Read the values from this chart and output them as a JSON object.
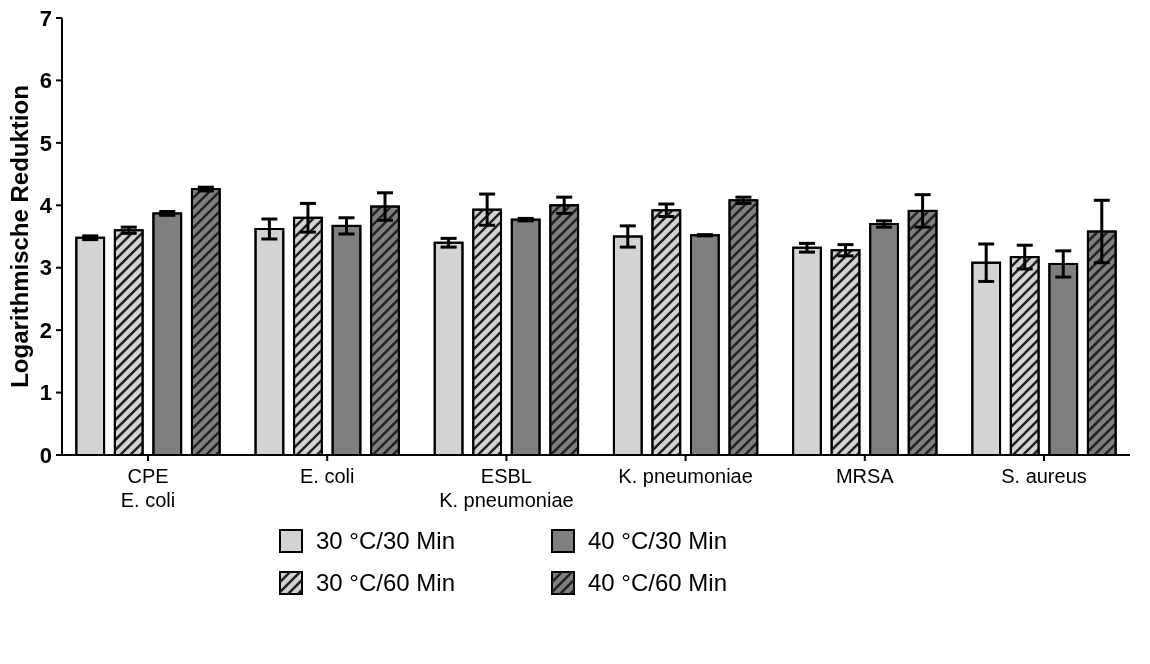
{
  "chart_data": {
    "type": "bar",
    "ylabel": "Logarithmische Reduktion",
    "categories": [
      "CPE\nE. coli",
      "E. coli",
      "ESBL\nK. pneumoniae",
      "K. pneumoniae",
      "MRSA",
      "S. aureus"
    ],
    "series": [
      {
        "name": "30 °C/30 Min",
        "color": "#d3d3d3",
        "values": [
          3.48,
          3.62,
          3.4,
          3.5,
          3.32,
          3.08
        ],
        "errors": [
          0.03,
          0.16,
          0.07,
          0.17,
          0.07,
          0.3
        ]
      },
      {
        "name": "30 °C/60 Min",
        "color": "#d3d3d3",
        "values": [
          3.6,
          3.8,
          3.93,
          3.92,
          3.28,
          3.17
        ],
        "errors": [
          0.05,
          0.23,
          0.25,
          0.1,
          0.09,
          0.19
        ]
      },
      {
        "name": "40 °C/30 Min",
        "color": "#7f7f7f",
        "values": [
          3.87,
          3.67,
          3.77,
          3.52,
          3.7,
          3.06
        ],
        "errors": [
          0.03,
          0.13,
          0.02,
          0.01,
          0.05,
          0.21
        ]
      },
      {
        "name": "40 °C/60 Min",
        "color": "#7f7f7f",
        "values": [
          4.26,
          3.98,
          4.0,
          4.08,
          3.91,
          3.58
        ],
        "errors": [
          0.03,
          0.22,
          0.13,
          0.05,
          0.26,
          0.5
        ]
      }
    ],
    "ylim": [
      0,
      7
    ],
    "yticks": [
      0,
      1,
      2,
      3,
      4,
      5,
      6,
      7
    ],
    "grid": false,
    "legend": "bottom"
  }
}
